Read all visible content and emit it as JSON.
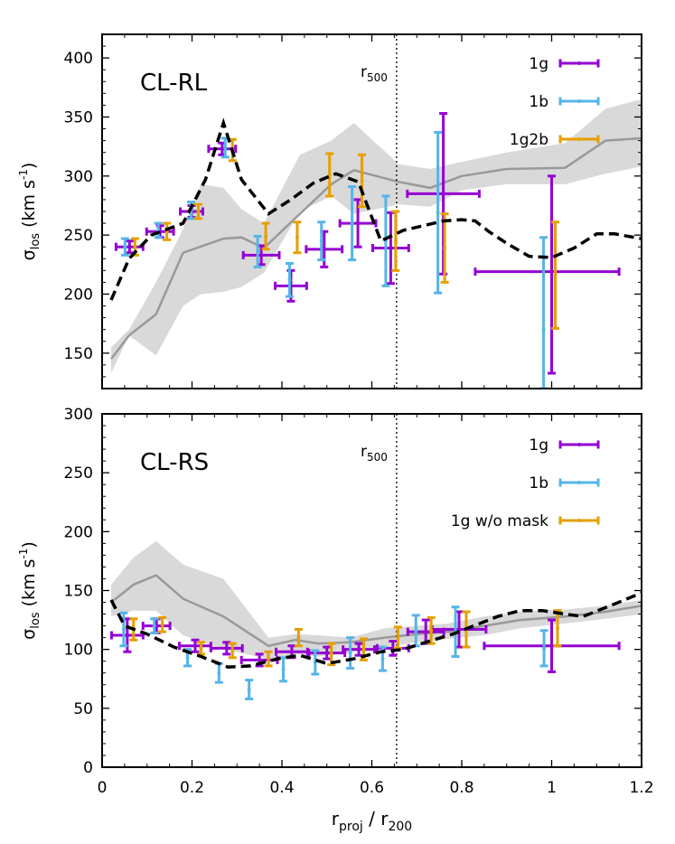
{
  "chart_data": [
    {
      "type": "scatter",
      "panel_label": "CL-RL",
      "xlim": [
        0,
        1.2
      ],
      "ylim": [
        120,
        420
      ],
      "x_ticks": [
        0,
        0.2,
        0.4,
        0.6,
        0.8,
        1,
        1.2
      ],
      "y_ticks": [
        150,
        200,
        250,
        300,
        350,
        400
      ],
      "ylabel_main": "σ",
      "ylabel_sub": "los",
      "ylabel_tail": " (km s",
      "ylabel_sup": "-1",
      "ylabel_end": ")",
      "vline_x": 0.655,
      "vline_label_main": "r",
      "vline_label_sub": "500",
      "legend": [
        "1g",
        "1b",
        "1g2b"
      ],
      "legend_colors": [
        "#9400d3",
        "#56b4e9",
        "#e69f00"
      ],
      "series": [
        {
          "name": "1g",
          "color": "#9400d3",
          "points": [
            {
              "x": 0.061,
              "y": 240,
              "xerr": [
                0.03,
                0.03
              ],
              "yerr": [
                5,
                5
              ]
            },
            {
              "x": 0.129,
              "y": 253,
              "xerr": [
                0.03,
                0.03
              ],
              "yerr": [
                5,
                5
              ]
            },
            {
              "x": 0.199,
              "y": 270,
              "xerr": [
                0.025,
                0.025
              ],
              "yerr": [
                5,
                5
              ]
            },
            {
              "x": 0.267,
              "y": 323,
              "xerr": [
                0.03,
                0.03
              ],
              "yerr": [
                5,
                5
              ]
            },
            {
              "x": 0.354,
              "y": 233,
              "xerr": [
                0.04,
                0.04
              ],
              "yerr": [
                8,
                8
              ]
            },
            {
              "x": 0.42,
              "y": 207,
              "xerr": [
                0.035,
                0.035
              ],
              "yerr": [
                13,
                13
              ]
            },
            {
              "x": 0.494,
              "y": 238,
              "xerr": [
                0.04,
                0.04
              ],
              "yerr": [
                15,
                15
              ]
            },
            {
              "x": 0.569,
              "y": 260,
              "xerr": [
                0.04,
                0.04
              ],
              "yerr": [
                20,
                20
              ]
            },
            {
              "x": 0.642,
              "y": 239,
              "xerr": [
                0.04,
                0.04
              ],
              "yerr": [
                30,
                30
              ]
            },
            {
              "x": 0.759,
              "y": 285,
              "xerr": [
                0.08,
                0.08
              ],
              "yerr": [
                68,
                68
              ]
            },
            {
              "x": 1.0,
              "y": 219,
              "xerr": [
                0.17,
                0.15
              ],
              "yerr": [
                86,
                81
              ]
            }
          ]
        },
        {
          "name": "1b",
          "color": "#56b4e9",
          "points": [
            {
              "x": 0.051,
              "y": 240,
              "yerr": [
                7,
                7
              ]
            },
            {
              "x": 0.125,
              "y": 254,
              "yerr": [
                6,
                6
              ]
            },
            {
              "x": 0.198,
              "y": 271,
              "yerr": [
                7,
                7
              ]
            },
            {
              "x": 0.274,
              "y": 324,
              "yerr": [
                8,
                8
              ]
            },
            {
              "x": 0.346,
              "y": 236,
              "yerr": [
                13,
                13
              ]
            },
            {
              "x": 0.417,
              "y": 212,
              "yerr": [
                14,
                14
              ]
            },
            {
              "x": 0.488,
              "y": 245,
              "yerr": [
                16,
                16
              ]
            },
            {
              "x": 0.556,
              "y": 260,
              "yerr": [
                31,
                31
              ]
            },
            {
              "x": 0.631,
              "y": 245,
              "yerr": [
                38,
                38
              ]
            },
            {
              "x": 0.747,
              "y": 269,
              "yerr": [
                68,
                68
              ]
            },
            {
              "x": 0.982,
              "y": 170,
              "yerr": [
                50,
                78
              ]
            }
          ]
        },
        {
          "name": "1g2b",
          "color": "#e69f00",
          "points": [
            {
              "x": 0.073,
              "y": 240,
              "yerr": [
                7,
                7
              ]
            },
            {
              "x": 0.144,
              "y": 253,
              "yerr": [
                7,
                7
              ]
            },
            {
              "x": 0.214,
              "y": 270,
              "yerr": [
                6,
                6
              ]
            },
            {
              "x": 0.29,
              "y": 322,
              "yerr": [
                9,
                9
              ]
            },
            {
              "x": 0.364,
              "y": 249,
              "yerr": [
                11,
                11
              ]
            },
            {
              "x": 0.434,
              "y": 248,
              "yerr": [
                13,
                13
              ]
            },
            {
              "x": 0.506,
              "y": 301,
              "yerr": [
                18,
                18
              ]
            },
            {
              "x": 0.578,
              "y": 296,
              "yerr": [
                22,
                22
              ]
            },
            {
              "x": 0.653,
              "y": 245,
              "yerr": [
                25,
                25
              ]
            },
            {
              "x": 0.762,
              "y": 239,
              "yerr": [
                29,
                29
              ]
            },
            {
              "x": 1.008,
              "y": 216,
              "yerr": [
                45,
                45
              ]
            }
          ]
        }
      ],
      "median_line": {
        "x": [
          0.02,
          0.06,
          0.12,
          0.18,
          0.27,
          0.31,
          0.36,
          0.44,
          0.51,
          0.56,
          0.66,
          0.73,
          0.8,
          0.9,
          1.03,
          1.12,
          1.2
        ],
        "y": [
          145,
          165,
          183,
          235,
          247,
          248,
          239,
          268,
          293,
          305,
          295,
          290,
          300,
          306,
          307,
          330,
          332
        ]
      },
      "band": {
        "x": [
          0.02,
          0.06,
          0.12,
          0.18,
          0.22,
          0.27,
          0.31,
          0.36,
          0.44,
          0.51,
          0.56,
          0.66,
          0.73,
          0.8,
          0.9,
          1.03,
          1.12,
          1.2
        ],
        "y_upper": [
          155,
          170,
          210,
          255,
          293,
          290,
          272,
          260,
          318,
          330,
          345,
          310,
          306,
          312,
          320,
          328,
          357,
          365
        ],
        "y_lower": [
          133,
          165,
          148,
          190,
          200,
          202,
          206,
          218,
          270,
          283,
          268,
          276,
          274,
          288,
          293,
          293,
          302,
          308
        ]
      },
      "dashed_line": {
        "x": [
          0.02,
          0.06,
          0.11,
          0.18,
          0.23,
          0.27,
          0.31,
          0.37,
          0.42,
          0.47,
          0.52,
          0.57,
          0.62,
          0.67,
          0.76,
          0.8,
          0.83,
          0.86,
          0.9,
          0.95,
          1.0,
          1.05,
          1.1,
          1.14,
          1.2
        ],
        "y": [
          195,
          230,
          250,
          260,
          297,
          345,
          297,
          268,
          280,
          294,
          302,
          295,
          245,
          254,
          262,
          263,
          262,
          253,
          243,
          232,
          231,
          239,
          251,
          251,
          247
        ]
      }
    },
    {
      "type": "scatter",
      "panel_label": "CL-RS",
      "xlim": [
        0,
        1.2
      ],
      "ylim": [
        0,
        300
      ],
      "x_ticks": [
        0,
        0.2,
        0.4,
        0.6,
        0.8,
        1,
        1.2
      ],
      "x_tick_labels": [
        "0",
        "0.2",
        "0.4",
        "0.6",
        "0.8",
        "1",
        "1.2"
      ],
      "y_ticks": [
        0,
        50,
        100,
        150,
        200,
        250,
        300
      ],
      "ylabel_main": "σ",
      "ylabel_sub": "los",
      "ylabel_tail": " (km s",
      "ylabel_sup": "-1",
      "ylabel_end": ")",
      "xlabel_main": "r",
      "xlabel_sub1": "proj",
      "xlabel_mid": " / r",
      "xlabel_sub2": "200",
      "vline_x": 0.655,
      "vline_label_main": "r",
      "vline_label_sub": "500",
      "legend": [
        "1g",
        "1b",
        "1g w/o mask"
      ],
      "legend_colors": [
        "#9400d3",
        "#56b4e9",
        "#e69f00"
      ],
      "series": [
        {
          "name": "1g",
          "color": "#9400d3",
          "points": [
            {
              "x": 0.056,
              "y": 112,
              "xerr": [
                0.035,
                0.035
              ],
              "yerr": [
                14,
                14
              ]
            },
            {
              "x": 0.121,
              "y": 120,
              "xerr": [
                0.03,
                0.03
              ],
              "yerr": [
                6,
                6
              ]
            },
            {
              "x": 0.207,
              "y": 103,
              "xerr": [
                0.035,
                0.035
              ],
              "yerr": [
                5,
                5
              ]
            },
            {
              "x": 0.277,
              "y": 101,
              "xerr": [
                0.035,
                0.035
              ],
              "yerr": [
                5,
                5
              ]
            },
            {
              "x": 0.35,
              "y": 91,
              "xerr": [
                0.04,
                0.04
              ],
              "yerr": [
                5,
                5
              ]
            },
            {
              "x": 0.422,
              "y": 98,
              "xerr": [
                0.035,
                0.035
              ],
              "yerr": [
                5,
                5
              ]
            },
            {
              "x": 0.5,
              "y": 97,
              "xerr": [
                0.04,
                0.04
              ],
              "yerr": [
                5,
                5
              ]
            },
            {
              "x": 0.571,
              "y": 100,
              "xerr": [
                0.035,
                0.035
              ],
              "yerr": [
                5,
                5
              ]
            },
            {
              "x": 0.647,
              "y": 101,
              "xerr": [
                0.035,
                0.035
              ],
              "yerr": [
                6,
                6
              ]
            },
            {
              "x": 0.72,
              "y": 115,
              "xerr": [
                0.04,
                0.04
              ],
              "yerr": [
                10,
                10
              ]
            },
            {
              "x": 0.794,
              "y": 117,
              "xerr": [
                0.06,
                0.06
              ],
              "yerr": [
                15,
                15
              ]
            },
            {
              "x": 1.0,
              "y": 103,
              "xerr": [
                0.15,
                0.15
              ],
              "yerr": [
                22,
                22
              ]
            }
          ]
        },
        {
          "name": "1b",
          "color": "#56b4e9",
          "points": [
            {
              "x": 0.048,
              "y": 117,
              "yerr": [
                14,
                14
              ]
            },
            {
              "x": 0.116,
              "y": 120,
              "yerr": [
                6,
                6
              ]
            },
            {
              "x": 0.19,
              "y": 93,
              "yerr": [
                7,
                7
              ]
            },
            {
              "x": 0.26,
              "y": 80,
              "yerr": [
                8,
                8
              ]
            },
            {
              "x": 0.327,
              "y": 66,
              "yerr": [
                8,
                8
              ]
            },
            {
              "x": 0.403,
              "y": 83,
              "yerr": [
                10,
                10
              ]
            },
            {
              "x": 0.474,
              "y": 89,
              "yerr": [
                10,
                10
              ]
            },
            {
              "x": 0.552,
              "y": 97,
              "yerr": [
                13,
                13
              ]
            },
            {
              "x": 0.624,
              "y": 92,
              "yerr": [
                10,
                10
              ]
            },
            {
              "x": 0.698,
              "y": 116,
              "yerr": [
                13,
                13
              ]
            },
            {
              "x": 0.786,
              "y": 115,
              "yerr": [
                21,
                21
              ]
            },
            {
              "x": 0.983,
              "y": 101,
              "yerr": [
                15,
                15
              ]
            }
          ]
        },
        {
          "name": "1g w/o mask",
          "color": "#e69f00",
          "points": [
            {
              "x": 0.07,
              "y": 117,
              "yerr": [
                9,
                9
              ]
            },
            {
              "x": 0.134,
              "y": 121,
              "yerr": [
                6,
                6
              ]
            },
            {
              "x": 0.22,
              "y": 101,
              "yerr": [
                5,
                5
              ]
            },
            {
              "x": 0.29,
              "y": 99,
              "yerr": [
                6,
                6
              ]
            },
            {
              "x": 0.37,
              "y": 92,
              "yerr": [
                6,
                6
              ]
            },
            {
              "x": 0.437,
              "y": 110,
              "yerr": [
                7,
                7
              ]
            },
            {
              "x": 0.51,
              "y": 96,
              "yerr": [
                9,
                9
              ]
            },
            {
              "x": 0.582,
              "y": 100,
              "yerr": [
                9,
                9
              ]
            },
            {
              "x": 0.658,
              "y": 110,
              "yerr": [
                9,
                9
              ]
            },
            {
              "x": 0.732,
              "y": 116,
              "yerr": [
                11,
                11
              ]
            },
            {
              "x": 0.81,
              "y": 117,
              "yerr": [
                15,
                15
              ]
            },
            {
              "x": 1.013,
              "y": 118,
              "yerr": [
                15,
                15
              ]
            }
          ]
        }
      ],
      "median_line": {
        "x": [
          0.02,
          0.07,
          0.12,
          0.18,
          0.27,
          0.37,
          0.43,
          0.48,
          0.55,
          0.63,
          0.7,
          0.77,
          0.85,
          0.93,
          1.03,
          1.12,
          1.2
        ],
        "y": [
          140,
          155,
          163,
          143,
          128,
          103,
          108,
          105,
          106,
          110,
          113,
          115,
          120,
          125,
          128,
          132,
          137
        ]
      },
      "band": {
        "x": [
          0.02,
          0.07,
          0.12,
          0.18,
          0.27,
          0.37,
          0.43,
          0.48,
          0.55,
          0.63,
          0.7,
          0.77,
          0.85,
          0.93,
          1.03,
          1.12,
          1.2
        ],
        "y_upper": [
          155,
          178,
          192,
          172,
          160,
          110,
          113,
          112,
          110,
          118,
          120,
          122,
          128,
          132,
          134,
          137,
          142
        ],
        "y_lower": [
          128,
          133,
          133,
          112,
          100,
          92,
          96,
          94,
          97,
          102,
          106,
          109,
          112,
          118,
          122,
          126,
          130
        ]
      },
      "dashed_line": {
        "x": [
          0.02,
          0.05,
          0.1,
          0.16,
          0.22,
          0.28,
          0.33,
          0.39,
          0.44,
          0.5,
          0.56,
          0.62,
          0.67,
          0.72,
          0.78,
          0.84,
          0.88,
          0.93,
          0.98,
          1.03,
          1.07,
          1.13,
          1.2
        ],
        "y": [
          142,
          120,
          113,
          102,
          94,
          85,
          86,
          92,
          95,
          88,
          92,
          98,
          100,
          106,
          113,
          122,
          128,
          133,
          133,
          130,
          128,
          137,
          148
        ]
      }
    }
  ]
}
